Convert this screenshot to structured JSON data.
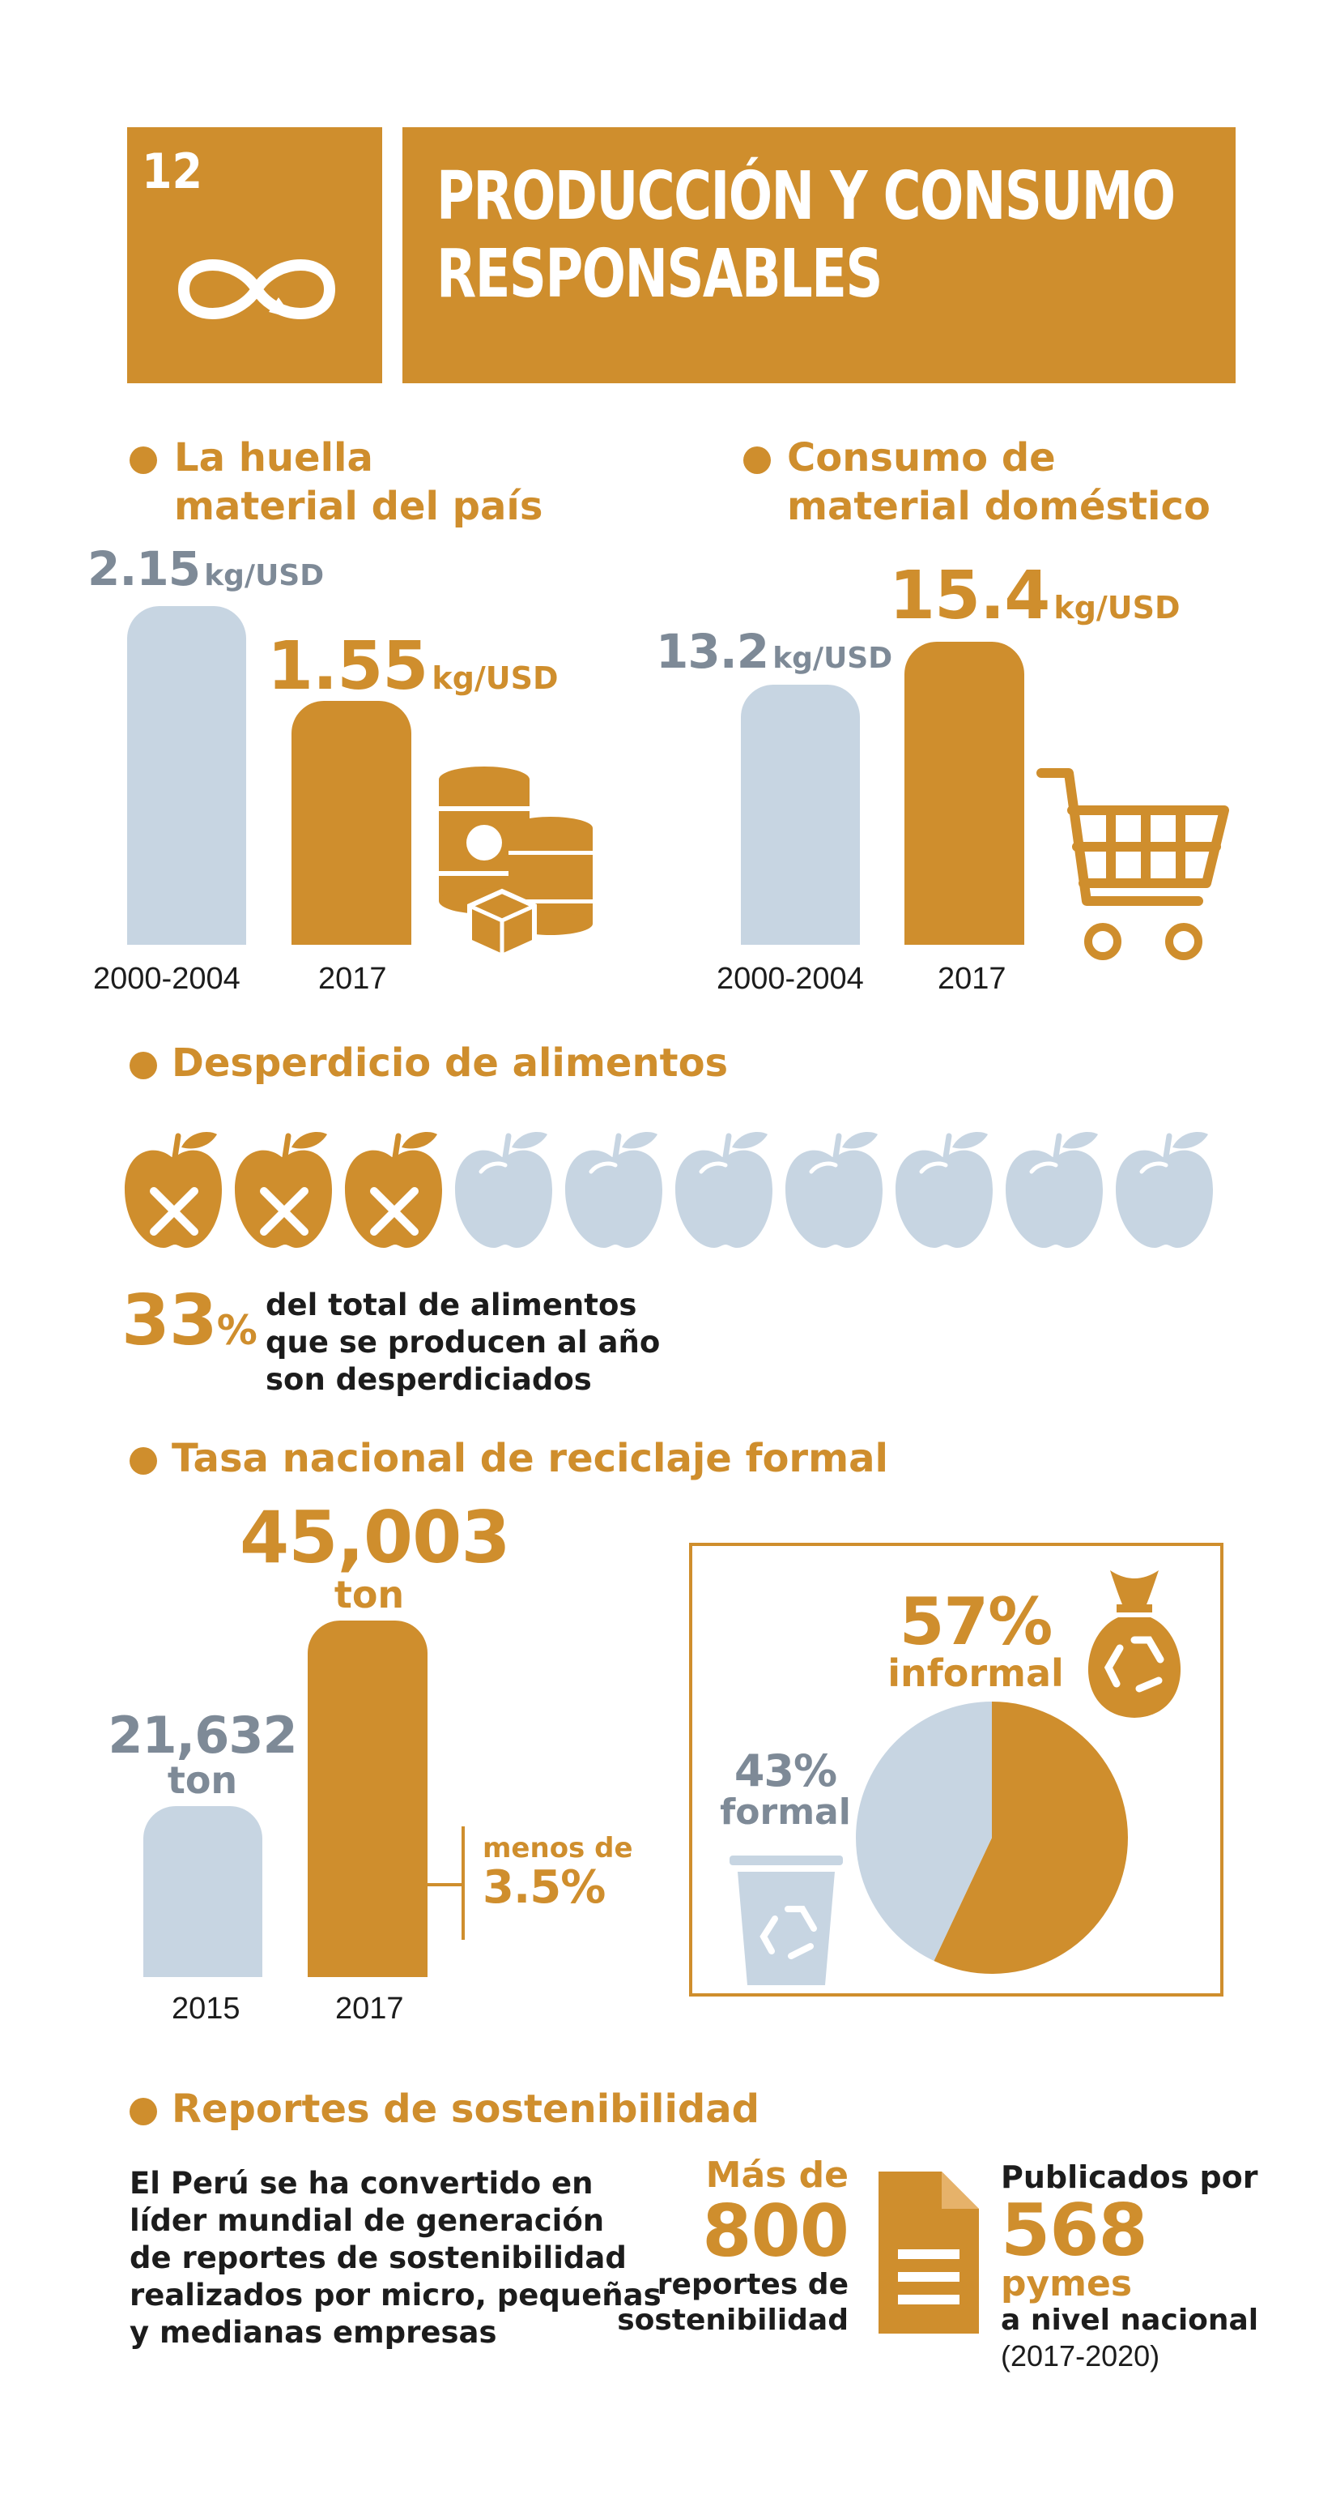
{
  "header": {
    "goal_number": "12",
    "title_line1": "PRODUCCIÓN Y CONSUMO",
    "title_line2": "RESPONSABLES",
    "icon": "infinity-arrow-icon"
  },
  "colors": {
    "gold": "#CF8E2D",
    "light_blue": "#C7D5E2",
    "grey_text": "#7E8A97"
  },
  "material_footprint": {
    "title_line1": "La huella",
    "title_line2": "material del país",
    "bars": [
      {
        "label": "2000-2004",
        "value": "2.15",
        "unit": "kg/USD",
        "numeric": 2.15
      },
      {
        "label": "2017",
        "value": "1.55",
        "unit": "kg/USD",
        "numeric": 1.55
      }
    ],
    "icon": "barrels-boxes-icon"
  },
  "domestic_consumption": {
    "title_line1": "Consumo de",
    "title_line2": "material doméstico",
    "bars": [
      {
        "label": "2000-2004",
        "value": "13.2",
        "unit": "kg/USD",
        "numeric": 13.2
      },
      {
        "label": "2017",
        "value": "15.4",
        "unit": "kg/USD",
        "numeric": 15.4
      }
    ],
    "icon": "shopping-cart-icon"
  },
  "food_waste": {
    "title": "Desperdicio de alimentos",
    "wasted_count": 3,
    "total_count": 10,
    "percent": "33",
    "percent_sign": "%",
    "desc_line1": "del total de alimentos",
    "desc_line2": "que se producen al año",
    "desc_line3": "son desperdiciados"
  },
  "recycling": {
    "title": "Tasa nacional de reciclaje formal",
    "bars": [
      {
        "label": "2015",
        "value": "21,632",
        "unit": "ton",
        "numeric": 21632
      },
      {
        "label": "2017",
        "value": "45,003",
        "unit": "ton",
        "numeric": 45003
      }
    ],
    "note_line1": "menos de",
    "note_line2": "3.5%",
    "pie": {
      "informal_pct": "57%",
      "informal_label": "informal",
      "formal_pct": "43%",
      "formal_label": "formal",
      "informal_value": 57,
      "formal_value": 43
    }
  },
  "sustainability_reports": {
    "title": "Reportes de sostenibilidad",
    "desc_lines": [
      "El Perú se ha convertido en",
      "líder mundial de generación",
      "de reportes de sostenibilidad",
      "realizados por micro, pequeñas",
      "y medianas empresas"
    ],
    "reports_prefix": "Más de",
    "reports_count": "800",
    "reports_suffix_line1": "reportes de",
    "reports_suffix_line2": "sostenibilidad",
    "published_by": "Publicados por",
    "pymes_count": "568",
    "pymes_label": "pymes",
    "scope": "a nivel nacional",
    "period": "(2017-2020)"
  }
}
